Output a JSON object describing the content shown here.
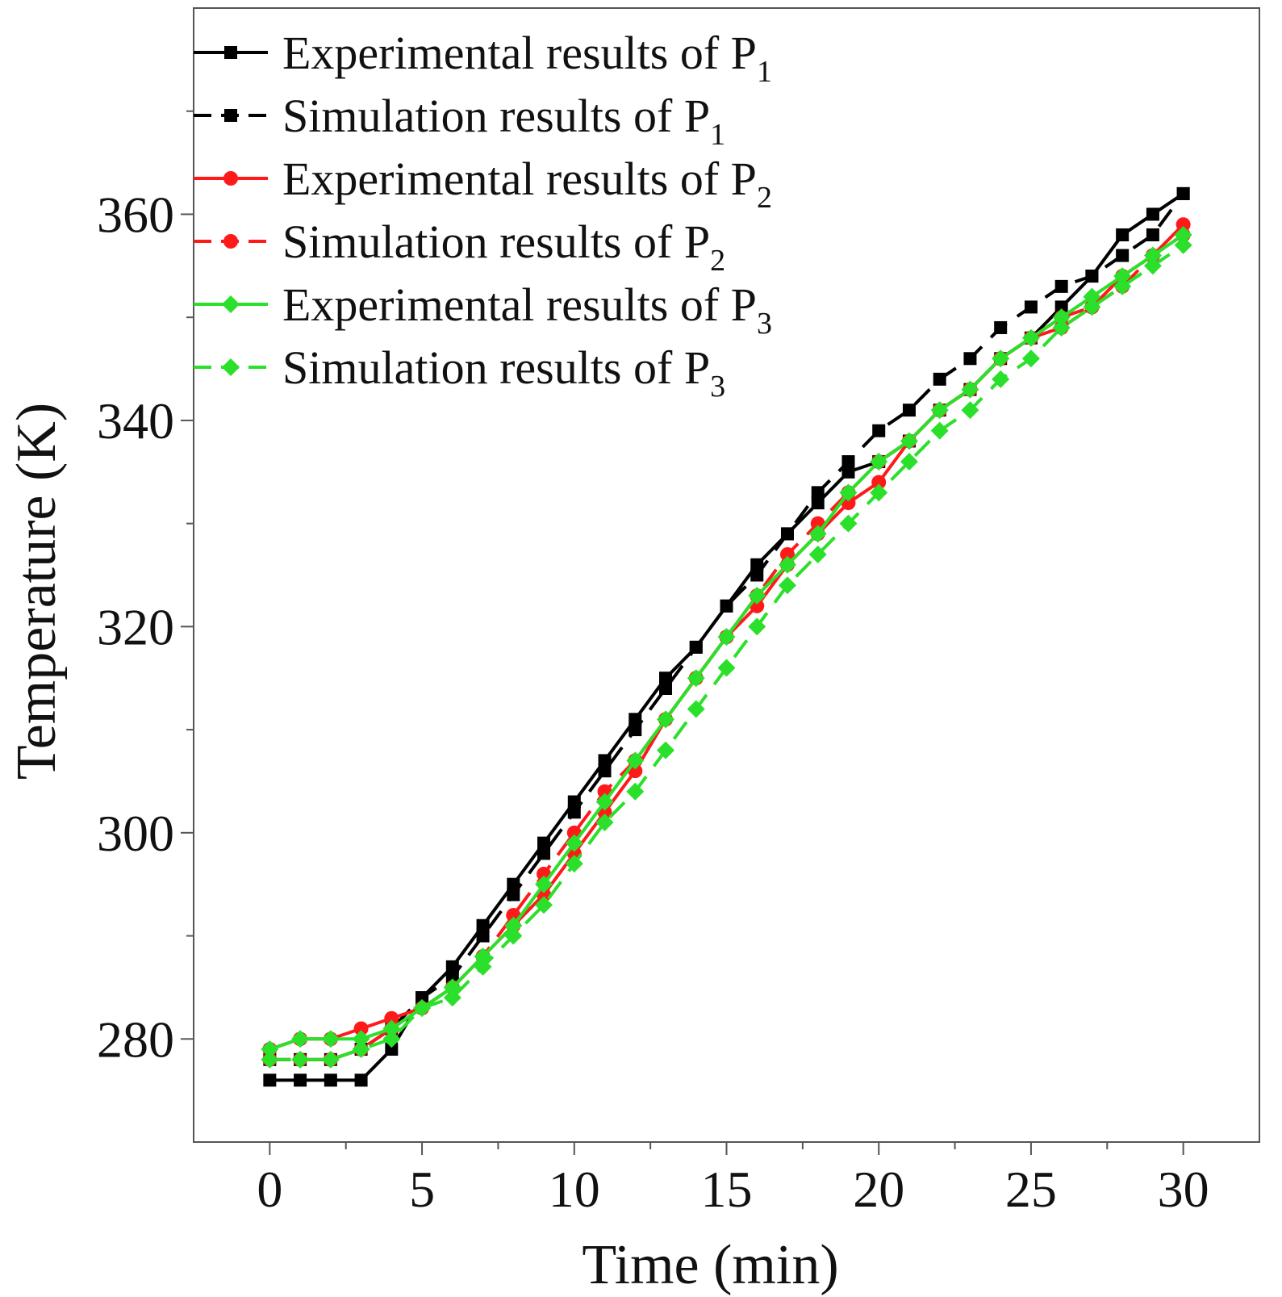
{
  "colors": {
    "black": "#000000",
    "red": "#ff1a1a",
    "green": "#2be02b",
    "axis": "#555555"
  },
  "chart_data": {
    "type": "line",
    "title": "",
    "xlabel": "Time (min)",
    "ylabel": "Temperature (K)",
    "xlim": [
      -2.5,
      32.5
    ],
    "ylim": [
      270,
      380
    ],
    "xticks": [
      0,
      5,
      10,
      15,
      20,
      25,
      30
    ],
    "yticks": [
      280,
      300,
      320,
      340,
      360
    ],
    "grid": false,
    "legend_position": "top-left",
    "x": [
      0,
      1,
      2,
      3,
      4,
      5,
      6,
      7,
      8,
      9,
      10,
      11,
      12,
      13,
      14,
      15,
      16,
      17,
      18,
      19,
      20,
      21,
      22,
      23,
      24,
      25,
      26,
      27,
      28,
      29,
      30
    ],
    "series": [
      {
        "name_main": "Experimental results of P",
        "name_sub": "1",
        "color": "#000000",
        "style": "solid",
        "marker": "square",
        "values": [
          276,
          276,
          276,
          276,
          279,
          284,
          287,
          291,
          295,
          299,
          303,
          307,
          311,
          315,
          318,
          322,
          326,
          329,
          332,
          335,
          336,
          338,
          341,
          343,
          346,
          348,
          351,
          354,
          358,
          360,
          362
        ]
      },
      {
        "name_main": "Simulation results of P",
        "name_sub": "1",
        "color": "#000000",
        "style": "dashed",
        "marker": "square",
        "values": [
          278,
          278,
          278,
          279,
          281,
          284,
          286,
          290,
          294,
          298,
          302,
          306,
          310,
          314,
          318,
          322,
          325,
          329,
          333,
          336,
          339,
          341,
          344,
          346,
          349,
          351,
          353,
          354,
          356,
          358,
          362
        ]
      },
      {
        "name_main": "Experimental results of P",
        "name_sub": "2",
        "color": "#ff1a1a",
        "style": "solid",
        "marker": "circle",
        "values": [
          279,
          280,
          280,
          281,
          282,
          283,
          285,
          288,
          291,
          294,
          298,
          302,
          306,
          311,
          315,
          319,
          322,
          326,
          329,
          332,
          334,
          338,
          341,
          343,
          346,
          348,
          349,
          351,
          354,
          356,
          359
        ]
      },
      {
        "name_main": "Simulation results of P",
        "name_sub": "2",
        "color": "#ff1a1a",
        "style": "dashed",
        "marker": "circle",
        "values": [
          278,
          278,
          278,
          279,
          281,
          283,
          285,
          288,
          292,
          296,
          300,
          304,
          307,
          311,
          315,
          319,
          323,
          327,
          330,
          333,
          336,
          338,
          341,
          343,
          346,
          348,
          350,
          351,
          353,
          356,
          358
        ]
      },
      {
        "name_main": "Experimental results of P",
        "name_sub": "3",
        "color": "#2be02b",
        "style": "solid",
        "marker": "diamond",
        "values": [
          279,
          280,
          280,
          280,
          281,
          283,
          285,
          288,
          291,
          295,
          299,
          303,
          307,
          311,
          315,
          319,
          323,
          326,
          329,
          333,
          336,
          338,
          341,
          343,
          346,
          348,
          350,
          352,
          354,
          356,
          358
        ]
      },
      {
        "name_main": "Simulation results of P",
        "name_sub": "3",
        "color": "#2be02b",
        "style": "dashed",
        "marker": "diamond",
        "values": [
          278,
          278,
          278,
          279,
          280,
          283,
          284,
          287,
          290,
          293,
          297,
          301,
          304,
          308,
          312,
          316,
          320,
          324,
          327,
          330,
          333,
          336,
          339,
          341,
          344,
          346,
          349,
          351,
          353,
          355,
          357
        ]
      }
    ]
  }
}
